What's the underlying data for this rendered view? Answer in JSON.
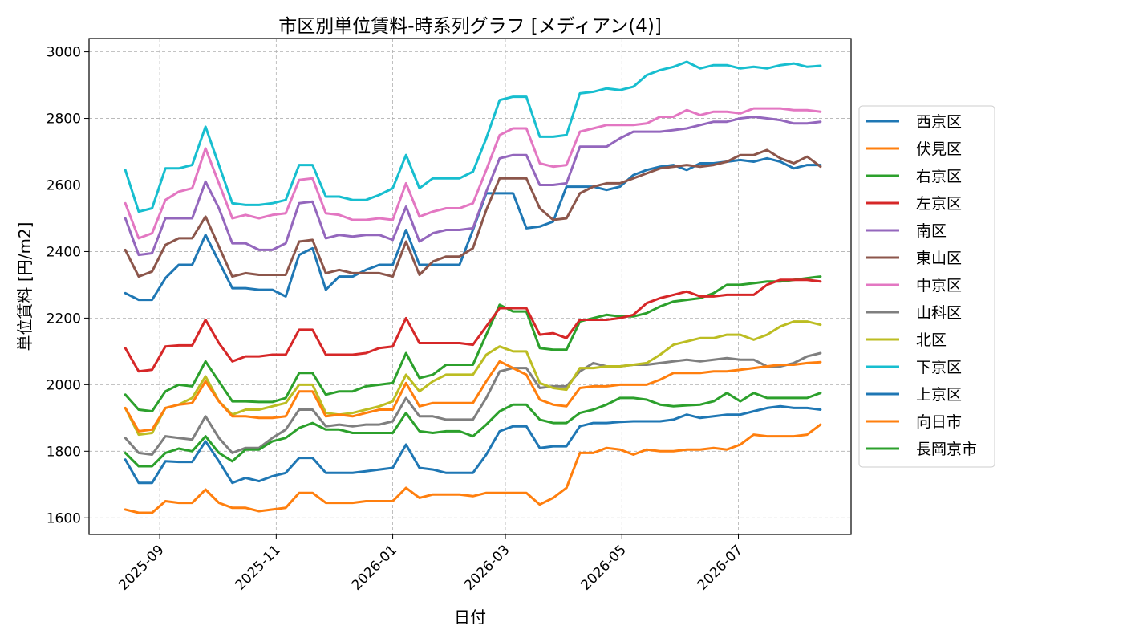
{
  "chart_data": {
    "type": "line",
    "title": "市区別単位賃料-時系列グラフ [メディアン(4)]",
    "xlabel": "日付",
    "ylabel": "単位賃料 [円/m2]",
    "ylim": [
      1550,
      3040
    ],
    "xlim": [
      "2025-07-26",
      "2026-08-29"
    ],
    "yticks": [
      1600,
      1800,
      2000,
      2200,
      2400,
      2600,
      2800,
      3000
    ],
    "xticks": [
      "2025-09",
      "2025-11",
      "2026-01",
      "2026-03",
      "2026-05",
      "2026-07"
    ],
    "xtick_dates": [
      "2025-09-01",
      "2025-11-01",
      "2026-01-01",
      "2026-03-01",
      "2026-05-01",
      "2026-07-01"
    ],
    "grid": true,
    "legend_position": "right",
    "x": [
      "2025-08-14",
      "2025-08-21",
      "2025-08-28",
      "2025-09-04",
      "2025-09-11",
      "2025-09-18",
      "2025-09-25",
      "2025-10-02",
      "2025-10-09",
      "2025-10-16",
      "2025-10-23",
      "2025-10-30",
      "2025-11-06",
      "2025-11-13",
      "2025-11-20",
      "2025-11-27",
      "2025-12-04",
      "2025-12-11",
      "2025-12-18",
      "2025-12-25",
      "2026-01-01",
      "2026-01-08",
      "2026-01-15",
      "2026-01-22",
      "2026-01-29",
      "2026-02-05",
      "2026-02-12",
      "2026-02-19",
      "2026-02-26",
      "2026-03-05",
      "2026-03-12",
      "2026-03-19",
      "2026-03-26",
      "2026-04-02",
      "2026-04-09",
      "2026-04-16",
      "2026-04-23",
      "2026-04-30",
      "2026-05-07",
      "2026-05-14",
      "2026-05-21",
      "2026-05-28",
      "2026-06-04",
      "2026-06-11",
      "2026-06-18",
      "2026-06-25",
      "2026-07-02",
      "2026-07-09",
      "2026-07-16",
      "2026-07-23",
      "2026-07-30",
      "2026-08-06",
      "2026-08-13"
    ],
    "series": [
      {
        "name": "西京区",
        "color": "#1f77b4",
        "values": [
          2275,
          2255,
          2255,
          2320,
          2360,
          2360,
          2450,
          2370,
          2290,
          2290,
          2285,
          2285,
          2265,
          2390,
          2410,
          2285,
          2325,
          2325,
          2345,
          2360,
          2360,
          2465,
          2360,
          2360,
          2360,
          2360,
          2465,
          2575,
          2575,
          2575,
          2470,
          2475,
          2490,
          2595,
          2595,
          2595,
          2585,
          2595,
          2630,
          2645,
          2655,
          2660,
          2645,
          2665,
          2665,
          2670,
          2675,
          2670,
          2680,
          2670,
          2650,
          2660,
          2660
        ]
      },
      {
        "name": "伏見区",
        "color": "#ff7f0e",
        "values": [
          1625,
          1615,
          1615,
          1650,
          1645,
          1645,
          1685,
          1645,
          1630,
          1630,
          1620,
          1625,
          1630,
          1675,
          1675,
          1645,
          1645,
          1645,
          1650,
          1650,
          1650,
          1690,
          1660,
          1670,
          1670,
          1670,
          1665,
          1675,
          1675,
          1675,
          1675,
          1640,
          1660,
          1690,
          1795,
          1795,
          1810,
          1805,
          1790,
          1805,
          1800,
          1800,
          1805,
          1805,
          1810,
          1805,
          1820,
          1850,
          1845,
          1845,
          1845,
          1850,
          1880
        ]
      },
      {
        "name": "右京区",
        "color": "#2ca02c",
        "values": [
          1970,
          1925,
          1920,
          1980,
          2000,
          1995,
          2070,
          2010,
          1950,
          1950,
          1948,
          1948,
          1960,
          2035,
          2035,
          1970,
          1980,
          1980,
          1995,
          2000,
          2005,
          2095,
          2020,
          2030,
          2060,
          2060,
          2060,
          2150,
          2240,
          2220,
          2220,
          2110,
          2105,
          2105,
          2190,
          2200,
          2210,
          2205,
          2205,
          2215,
          2235,
          2250,
          2255,
          2260,
          2275,
          2300,
          2300,
          2305,
          2310,
          2310,
          2315,
          2320,
          2325
        ]
      },
      {
        "name": "左京区",
        "color": "#d62728",
        "values": [
          2110,
          2040,
          2045,
          2115,
          2118,
          2118,
          2195,
          2125,
          2070,
          2085,
          2085,
          2090,
          2090,
          2165,
          2165,
          2090,
          2090,
          2090,
          2095,
          2110,
          2115,
          2200,
          2125,
          2125,
          2125,
          2125,
          2120,
          2175,
          2230,
          2230,
          2230,
          2150,
          2155,
          2140,
          2195,
          2195,
          2195,
          2200,
          2210,
          2245,
          2260,
          2270,
          2280,
          2265,
          2265,
          2270,
          2270,
          2270,
          2300,
          2315,
          2315,
          2315,
          2310
        ]
      },
      {
        "name": "南区",
        "color": "#9467bd",
        "values": [
          2500,
          2390,
          2395,
          2500,
          2500,
          2500,
          2610,
          2530,
          2425,
          2425,
          2405,
          2405,
          2425,
          2545,
          2550,
          2440,
          2450,
          2445,
          2450,
          2450,
          2435,
          2535,
          2430,
          2455,
          2465,
          2465,
          2470,
          2580,
          2680,
          2690,
          2690,
          2600,
          2600,
          2605,
          2715,
          2715,
          2715,
          2740,
          2760,
          2760,
          2760,
          2765,
          2770,
          2780,
          2790,
          2790,
          2800,
          2805,
          2800,
          2795,
          2785,
          2785,
          2790
        ]
      },
      {
        "name": "東山区",
        "color": "#8c564b",
        "values": [
          2405,
          2325,
          2340,
          2420,
          2440,
          2440,
          2505,
          2415,
          2325,
          2335,
          2330,
          2330,
          2330,
          2430,
          2435,
          2335,
          2345,
          2335,
          2335,
          2335,
          2325,
          2430,
          2330,
          2370,
          2385,
          2385,
          2410,
          2525,
          2620,
          2620,
          2620,
          2530,
          2495,
          2500,
          2575,
          2595,
          2605,
          2605,
          2620,
          2635,
          2650,
          2655,
          2660,
          2655,
          2660,
          2670,
          2690,
          2690,
          2705,
          2680,
          2665,
          2685,
          2655
        ]
      },
      {
        "name": "中京区",
        "color": "#e377c2",
        "values": [
          2545,
          2440,
          2455,
          2555,
          2580,
          2590,
          2710,
          2605,
          2500,
          2510,
          2500,
          2510,
          2515,
          2615,
          2620,
          2515,
          2510,
          2495,
          2495,
          2500,
          2495,
          2605,
          2505,
          2520,
          2530,
          2530,
          2545,
          2645,
          2750,
          2770,
          2770,
          2665,
          2655,
          2660,
          2760,
          2770,
          2780,
          2780,
          2780,
          2785,
          2805,
          2805,
          2825,
          2810,
          2820,
          2820,
          2815,
          2830,
          2830,
          2830,
          2825,
          2825,
          2820
        ]
      },
      {
        "name": "山科区",
        "color": "#7f7f7f",
        "values": [
          1840,
          1795,
          1790,
          1845,
          1840,
          1835,
          1905,
          1840,
          1795,
          1810,
          1810,
          1840,
          1865,
          1925,
          1925,
          1875,
          1880,
          1875,
          1880,
          1880,
          1890,
          1960,
          1905,
          1905,
          1895,
          1895,
          1895,
          1960,
          2040,
          2050,
          2050,
          1990,
          1995,
          1995,
          2040,
          2065,
          2055,
          2055,
          2060,
          2060,
          2065,
          2070,
          2075,
          2070,
          2075,
          2080,
          2075,
          2075,
          2055,
          2055,
          2065,
          2085,
          2095
        ]
      },
      {
        "name": "北区",
        "color": "#bcbd22",
        "values": [
          1930,
          1850,
          1855,
          1930,
          1940,
          1960,
          2025,
          1950,
          1910,
          1925,
          1925,
          1935,
          1945,
          2000,
          2000,
          1915,
          1910,
          1915,
          1925,
          1935,
          1950,
          2030,
          1980,
          2010,
          2030,
          2030,
          2030,
          2090,
          2115,
          2100,
          2100,
          2005,
          1990,
          1985,
          2050,
          2050,
          2055,
          2055,
          2060,
          2065,
          2090,
          2120,
          2130,
          2140,
          2140,
          2150,
          2150,
          2135,
          2150,
          2175,
          2190,
          2190,
          2180
        ]
      },
      {
        "name": "下京区",
        "color": "#17becf",
        "values": [
          2645,
          2520,
          2530,
          2650,
          2650,
          2660,
          2775,
          2660,
          2545,
          2540,
          2540,
          2545,
          2555,
          2660,
          2660,
          2565,
          2565,
          2555,
          2555,
          2570,
          2590,
          2690,
          2590,
          2620,
          2620,
          2620,
          2640,
          2740,
          2855,
          2865,
          2865,
          2745,
          2745,
          2750,
          2875,
          2880,
          2890,
          2885,
          2895,
          2930,
          2945,
          2955,
          2970,
          2950,
          2960,
          2960,
          2950,
          2955,
          2950,
          2960,
          2965,
          2955,
          2958
        ]
      },
      {
        "name": "上京区",
        "color": "#1f77b4",
        "values": [
          1775,
          1705,
          1705,
          1770,
          1768,
          1768,
          1830,
          1770,
          1705,
          1720,
          1710,
          1725,
          1735,
          1780,
          1780,
          1735,
          1735,
          1735,
          1740,
          1745,
          1750,
          1820,
          1750,
          1745,
          1735,
          1735,
          1735,
          1790,
          1860,
          1875,
          1875,
          1810,
          1815,
          1815,
          1875,
          1885,
          1885,
          1888,
          1890,
          1890,
          1890,
          1895,
          1910,
          1900,
          1905,
          1910,
          1910,
          1920,
          1930,
          1935,
          1930,
          1930,
          1925
        ]
      },
      {
        "name": "向日市",
        "color": "#ff7f0e",
        "values": [
          1930,
          1860,
          1865,
          1930,
          1940,
          1945,
          2010,
          1950,
          1905,
          1905,
          1900,
          1900,
          1905,
          1980,
          1980,
          1905,
          1910,
          1905,
          1915,
          1925,
          1925,
          2005,
          1935,
          1945,
          1945,
          1945,
          1945,
          2010,
          2070,
          2050,
          2030,
          1955,
          1940,
          1935,
          1990,
          1995,
          1995,
          2000,
          2000,
          2000,
          2015,
          2035,
          2035,
          2035,
          2040,
          2040,
          2045,
          2050,
          2055,
          2060,
          2060,
          2065,
          2068
        ]
      },
      {
        "name": "長岡京市",
        "color": "#2ca02c",
        "values": [
          1795,
          1755,
          1755,
          1795,
          1808,
          1800,
          1845,
          1795,
          1770,
          1805,
          1805,
          1830,
          1840,
          1870,
          1885,
          1865,
          1865,
          1855,
          1855,
          1855,
          1855,
          1915,
          1860,
          1855,
          1860,
          1860,
          1845,
          1880,
          1920,
          1940,
          1940,
          1895,
          1885,
          1885,
          1915,
          1925,
          1940,
          1960,
          1960,
          1955,
          1940,
          1935,
          1938,
          1940,
          1950,
          1975,
          1950,
          1975,
          1960,
          1960,
          1960,
          1960,
          1975
        ]
      }
    ]
  }
}
